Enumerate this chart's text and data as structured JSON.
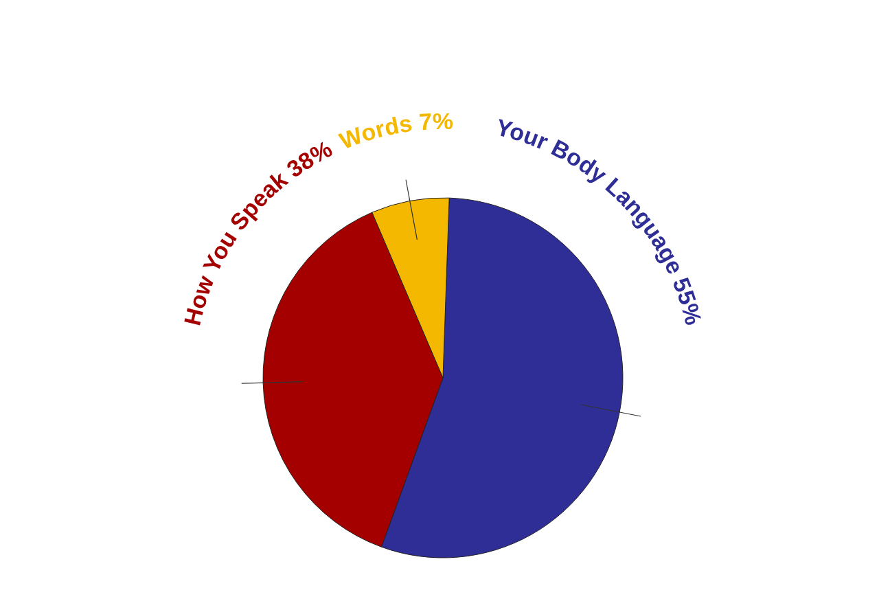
{
  "chart_data": {
    "type": "pie",
    "categories": [
      "Your Body Language",
      "How You Speak",
      "Words"
    ],
    "values": [
      55,
      38,
      7
    ],
    "value_labels": [
      "55%",
      "38%",
      "7%"
    ],
    "colors": [
      "#2e2e96",
      "#a50000",
      "#f5b800"
    ],
    "legend": false
  }
}
